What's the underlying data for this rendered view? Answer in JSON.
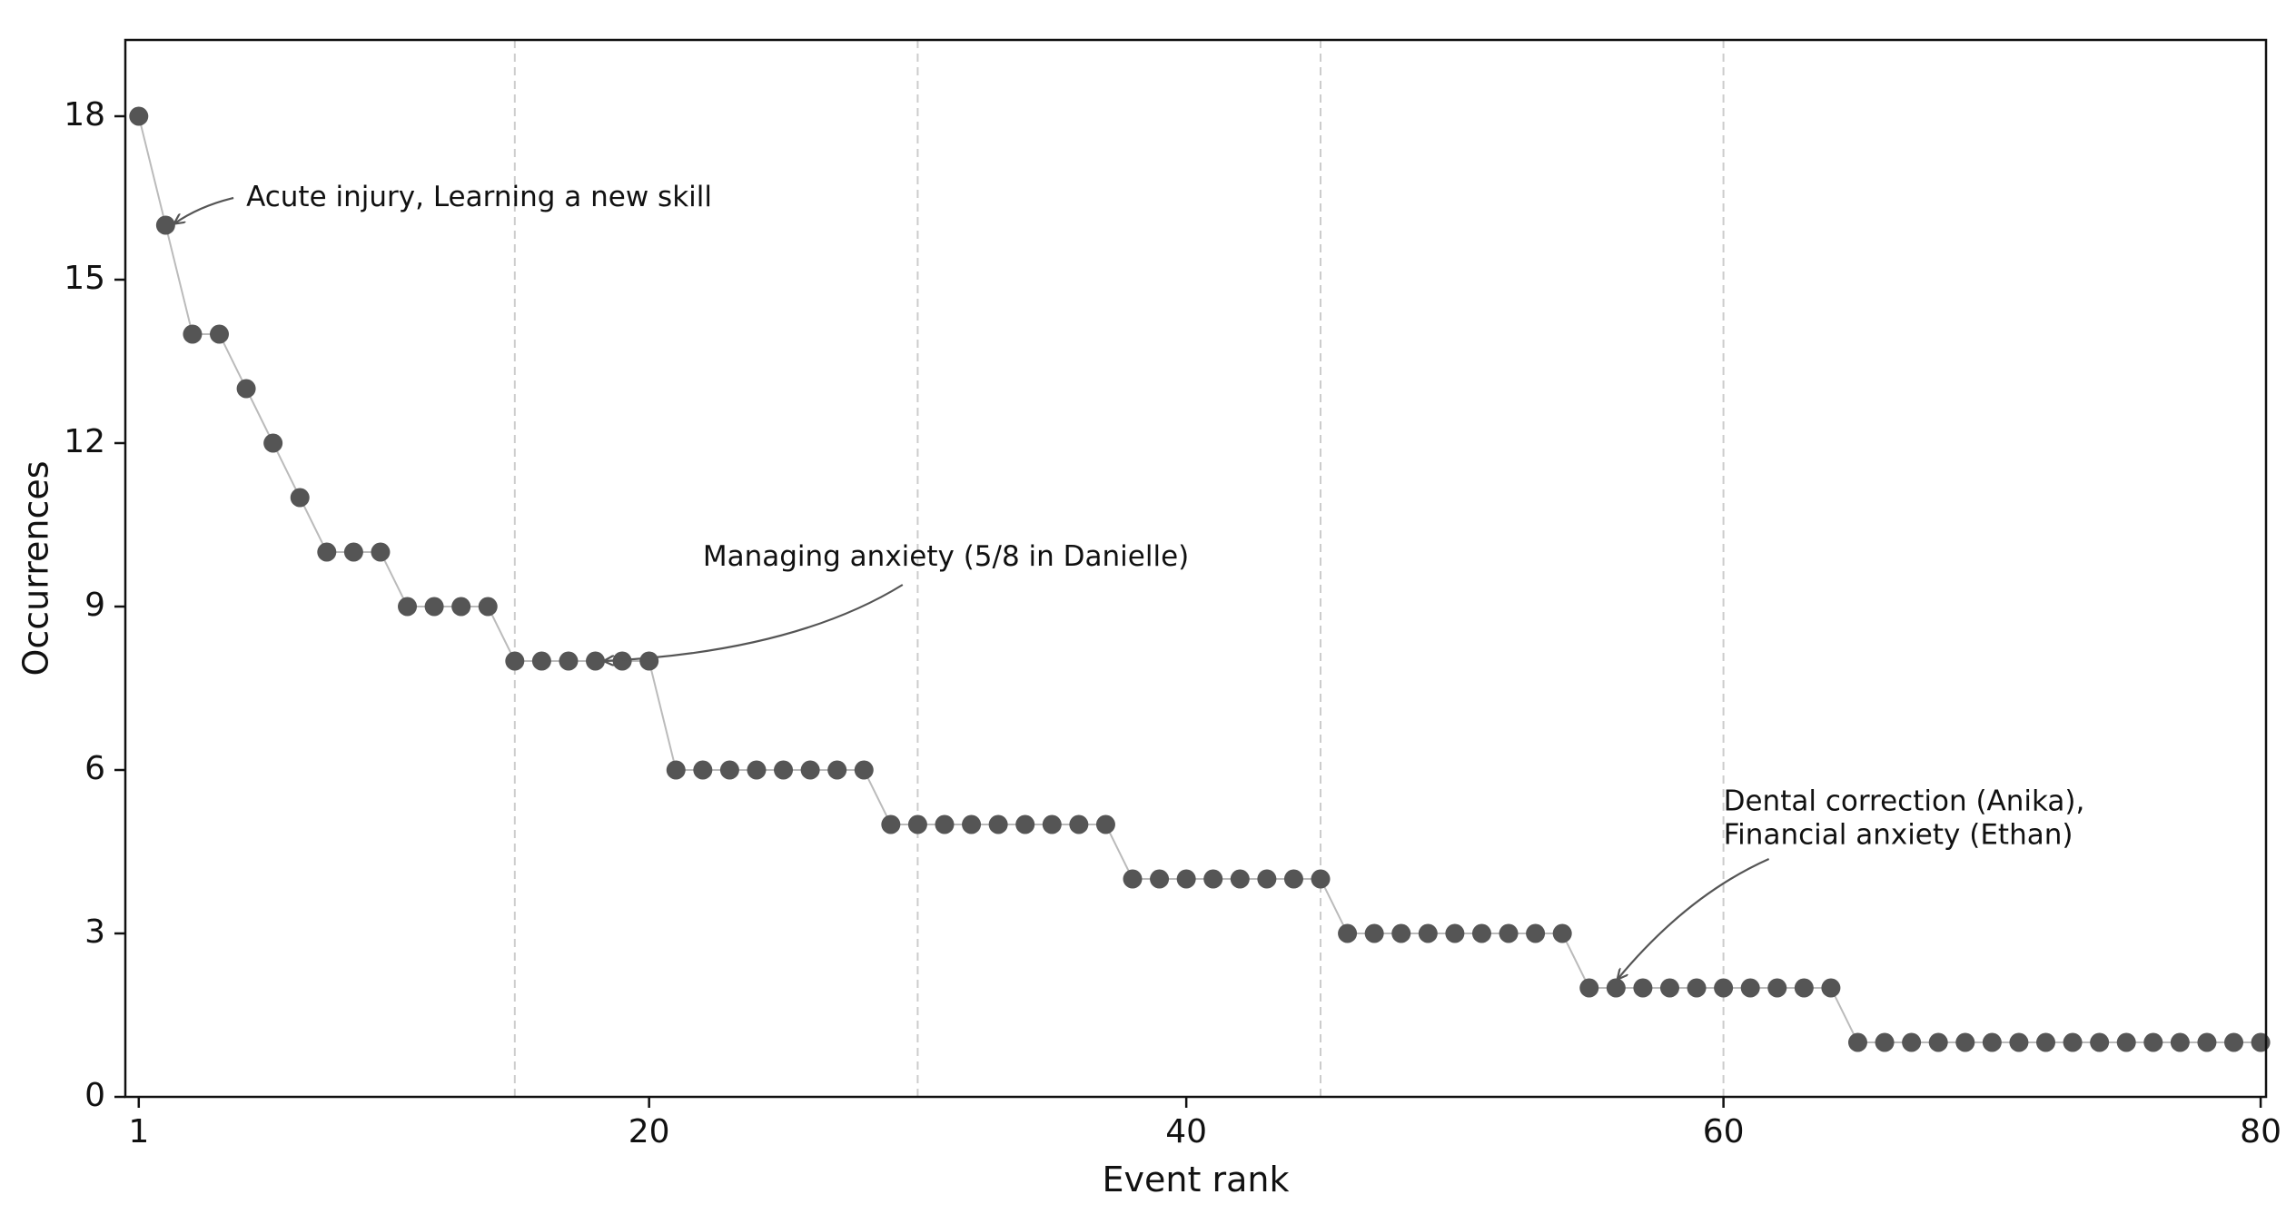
{
  "chart_data": {
    "type": "scatter",
    "xlabel": "Event rank",
    "ylabel": "Occurrences",
    "xlim": [
      0.5,
      80.2
    ],
    "ylim": [
      0,
      19.4
    ],
    "xticks": [
      1,
      20,
      40,
      60,
      80
    ],
    "yticks": [
      0,
      3,
      6,
      9,
      12,
      15,
      18
    ],
    "vlines": [
      15,
      30,
      45,
      60
    ],
    "grid": false,
    "x": [
      1,
      2,
      3,
      4,
      5,
      6,
      7,
      8,
      9,
      10,
      11,
      12,
      13,
      14,
      15,
      16,
      17,
      18,
      19,
      20,
      21,
      22,
      23,
      24,
      25,
      26,
      27,
      28,
      29,
      30,
      31,
      32,
      33,
      34,
      35,
      36,
      37,
      38,
      39,
      40,
      41,
      42,
      43,
      44,
      45,
      46,
      47,
      48,
      49,
      50,
      51,
      52,
      53,
      54,
      55,
      56,
      57,
      58,
      59,
      60,
      61,
      62,
      63,
      64,
      65,
      66,
      67,
      68,
      69,
      70,
      71,
      72,
      73,
      74,
      75,
      76,
      77,
      78,
      79,
      80
    ],
    "y": [
      18,
      16,
      14,
      14,
      13,
      12,
      11,
      10,
      10,
      10,
      9,
      9,
      9,
      9,
      8,
      8,
      8,
      8,
      8,
      8,
      6,
      6,
      6,
      6,
      6,
      6,
      6,
      6,
      5,
      5,
      5,
      5,
      5,
      5,
      5,
      5,
      5,
      4,
      4,
      4,
      4,
      4,
      4,
      4,
      4,
      3,
      3,
      3,
      3,
      3,
      3,
      3,
      3,
      3,
      2,
      2,
      2,
      2,
      2,
      2,
      2,
      2,
      2,
      2,
      1,
      1,
      1,
      1,
      1,
      1,
      1,
      1,
      1,
      1,
      1,
      1,
      1,
      1,
      1,
      1
    ],
    "colors": {
      "marker": "#555555",
      "line": "#bbbbbb",
      "vline": "#cccccc",
      "axis": "#111111",
      "annotation": "#555555"
    },
    "annotations": [
      {
        "lines": [
          "Acute injury, Learning a new skill"
        ],
        "point": [
          2,
          16
        ],
        "text_at": [
          5,
          16.5
        ]
      },
      {
        "lines": [
          "Managing anxiety (5/8 in Danielle)"
        ],
        "point": [
          18,
          8
        ],
        "text_at": [
          22,
          9.9
        ]
      },
      {
        "lines": [
          "Dental correction (Anika),",
          "Financial anxiety (Ethan)"
        ],
        "point": [
          56,
          2
        ],
        "text_at": [
          60,
          5.1
        ]
      }
    ]
  }
}
